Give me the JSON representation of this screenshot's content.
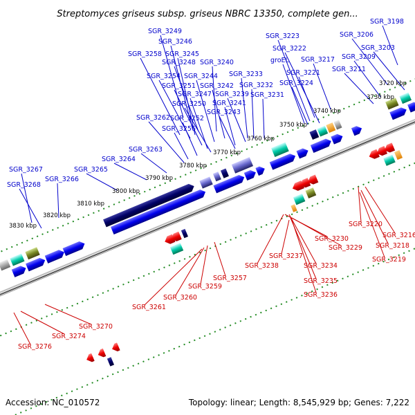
{
  "title": "Streptomyces griseus subsp. griseus NBRC 13350, complete gen...",
  "footer": {
    "accession": "Accession: NC_010572",
    "summary": "Topology: linear; Length: 8,545,929 bp; Genes: 7,222"
  },
  "kbp_labels": [
    "3720 kbp",
    "3730 kbp",
    "3740 kbp",
    "3750 kbp",
    "3760 kbp",
    "3770 kbp",
    "3780 kbp",
    "3790 kbp",
    "3800 kbp",
    "3810 kbp",
    "3820 kbp",
    "3830 kbp"
  ],
  "genes_forward": [
    "SGR_3198",
    "SGR_3206",
    "SGR_3203",
    "SGR_3209",
    "SGR_3211",
    "SGR_3223",
    "SGR_3222",
    "groEL",
    "SGR_3217",
    "SGR_3221",
    "SGR_3224",
    "SGR_3249",
    "SGR_3246",
    "SGR_3245",
    "SGR_3248",
    "SGR_3240",
    "SGR_3258",
    "SGR_3254",
    "SGR_3244",
    "SGR_3233",
    "SGR_3251",
    "SGR_3242",
    "SGR_3232",
    "SGR_3247",
    "SGR_3239",
    "SGR_3231",
    "SGR_3250",
    "SGR_3241",
    "SGR_3252",
    "SGR_3243",
    "SGR_3262",
    "SGR_3256",
    "SGR_3263",
    "SGR_3264",
    "SGR_3265",
    "SGR_3267",
    "SGR_3266",
    "SGR_3268"
  ],
  "genes_reverse": [
    "SGR_3220",
    "SGR_3216",
    "SGR_3230",
    "SGR_3218",
    "SGR_3229",
    "SGR_3219",
    "SGR_3237",
    "SGR_3238",
    "SGR_3234",
    "SGR_3235",
    "SGR_3236",
    "SGR_3257",
    "SGR_3259",
    "SGR_3260",
    "SGR_3261",
    "SGR_3270",
    "SGR_3274",
    "SGR_3276"
  ],
  "colors": {
    "forward_label": "#0000cc",
    "reverse_label": "#cc0000",
    "backbone": "#888888",
    "tick": "#228b22"
  }
}
